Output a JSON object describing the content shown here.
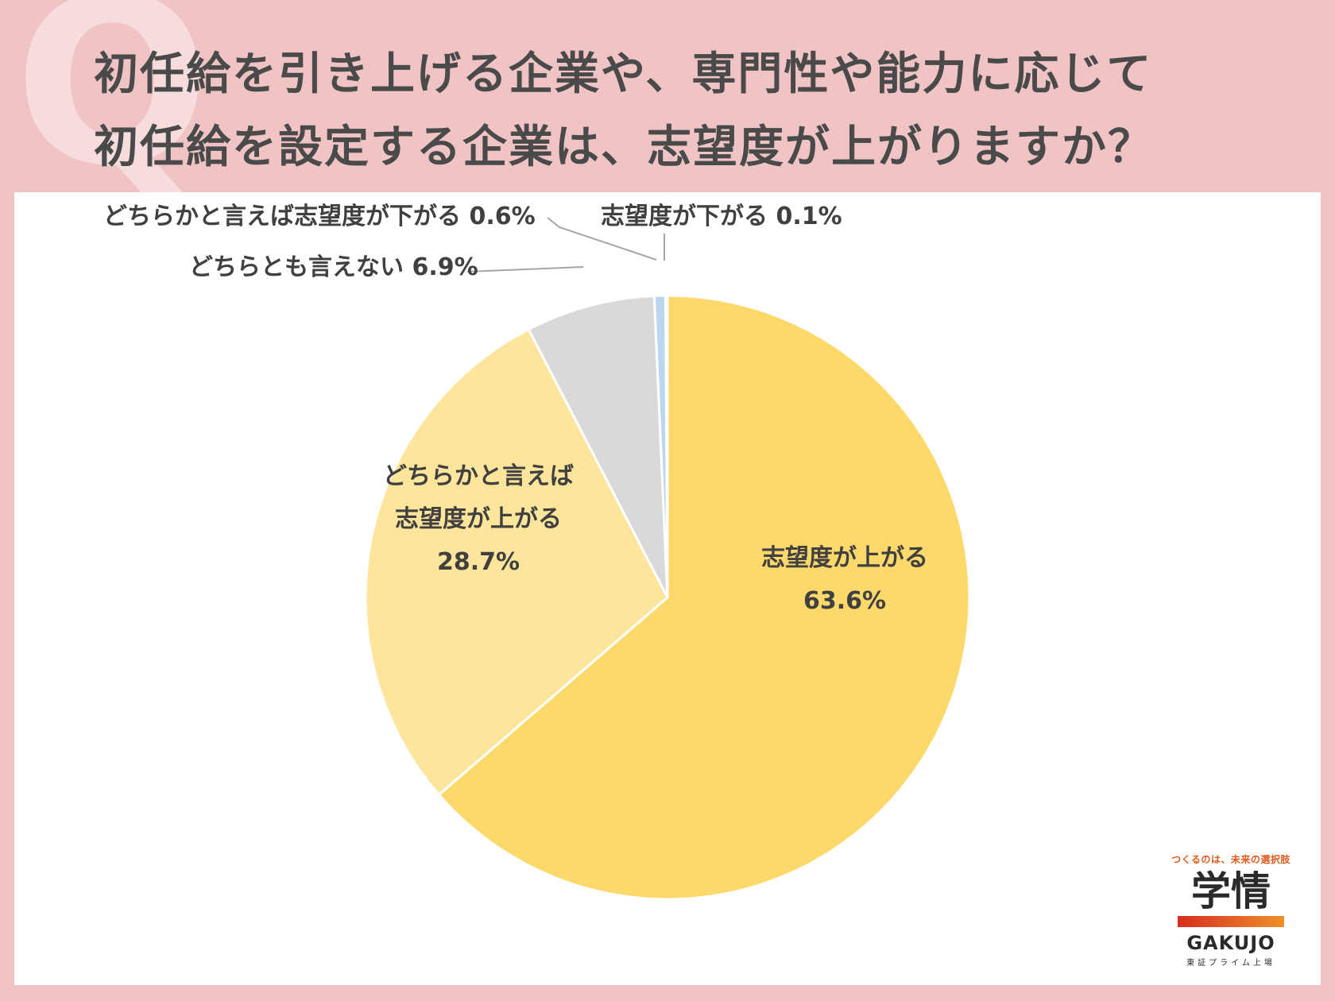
{
  "header": {
    "watermark_letter": "Q",
    "title_line1": "初任給を引き上げる企業や、専門性や能力に応じて",
    "title_line2": "初任給を設定する企業は、志望度が上がりますか？"
  },
  "chart_data": {
    "type": "pie",
    "start_angle_deg": 0,
    "direction": "clockwise",
    "slices": [
      {
        "label": "志望度が上がる",
        "value": 63.6,
        "value_label": "63.6%",
        "color": "#fdd96b"
      },
      {
        "label": "どちらかと言えば志望度が上がる",
        "label_lines": [
          "どちらかと言えば",
          "志望度が上がる"
        ],
        "value": 28.7,
        "value_label": "28.7%",
        "color": "#fee59c"
      },
      {
        "label": "どちらとも言えない",
        "value": 6.9,
        "value_label": "6.9%",
        "color": "#d9d9d9"
      },
      {
        "label": "どちらかと言えば志望度が下がる",
        "value": 0.6,
        "value_label": "0.6%",
        "color": "#bcd6ef"
      },
      {
        "label": "志望度が下がる",
        "value": 0.1,
        "value_label": "0.1%",
        "color": "#7fa8d6"
      }
    ],
    "outside_labels": [
      "どちらかと言えば志望度が下がる 0.6%",
      "志望度が下がる 0.1%",
      "どちらとも言えない 6.9%"
    ],
    "legend": "none"
  },
  "logo": {
    "tagline": "つくるのは、未来の選択肢",
    "mark": "学情",
    "name": "GAKUJO",
    "sub": "東証プライム上場"
  }
}
